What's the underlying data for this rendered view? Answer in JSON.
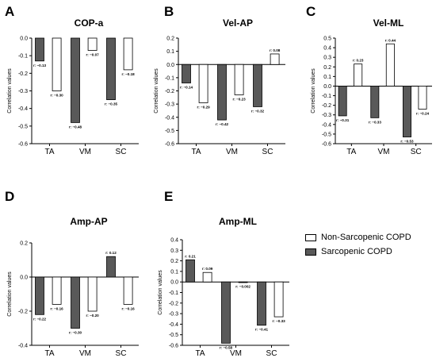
{
  "colors": {
    "non_sarcopenic": "#ffffff",
    "sarcopenic": "#595959",
    "axis": "#000000"
  },
  "legend": [
    {
      "label": "Non-Sarcopenic COPD",
      "color": "#ffffff"
    },
    {
      "label": "Sarcopenic COPD",
      "color": "#595959"
    }
  ],
  "chart_data": [
    {
      "panel": "A",
      "title": "COP-a",
      "type": "bar",
      "ylabel": "Correlation values",
      "categories": [
        "TA",
        "VM",
        "SC"
      ],
      "ylim": [
        -0.6,
        0.0
      ],
      "yticks": [
        0.0,
        -0.1,
        -0.2,
        -0.3,
        -0.4,
        -0.5,
        -0.6
      ],
      "ytick_labels": [
        "0.0",
        "-0.1",
        "-0.2",
        "-0.3",
        "-0.4",
        "-0.5",
        "-0.6"
      ],
      "series": [
        {
          "name": "Sarcopenic COPD",
          "values": [
            -0.13,
            -0.48,
            -0.35
          ],
          "labels": [
            "r: −0.13",
            "r: −0.48",
            "r: −0.35"
          ]
        },
        {
          "name": "Non-Sarcopenic COPD",
          "values": [
            -0.3,
            -0.07,
            -0.18
          ],
          "labels": [
            "r: −0.30",
            "r: −0.07",
            "r: −0.18"
          ]
        }
      ]
    },
    {
      "panel": "B",
      "title": "Vel-AP",
      "type": "bar",
      "ylabel": "Correlation values",
      "categories": [
        "TA",
        "VM",
        "SC"
      ],
      "ylim": [
        -0.6,
        0.2
      ],
      "yticks": [
        0.2,
        0.1,
        0.0,
        -0.1,
        -0.2,
        -0.3,
        -0.4,
        -0.5,
        -0.6
      ],
      "ytick_labels": [
        "0.2",
        "0.1",
        "0.0",
        "-0.1",
        "-0.2",
        "-0.3",
        "-0.4",
        "-0.5",
        "-0.6"
      ],
      "series": [
        {
          "name": "Sarcopenic COPD",
          "values": [
            -0.14,
            -0.42,
            -0.32
          ],
          "labels": [
            "r: −0.14",
            "r: −0.42",
            "r: −0.32"
          ]
        },
        {
          "name": "Non-Sarcopenic COPD",
          "values": [
            -0.29,
            -0.23,
            0.08
          ],
          "labels": [
            "r: −0.29",
            "r: −0.23",
            "r: 0.08"
          ]
        }
      ]
    },
    {
      "panel": "C",
      "title": "Vel-ML",
      "type": "bar",
      "ylabel": "Correlation values",
      "categories": [
        "TA",
        "VM",
        "SC"
      ],
      "ylim": [
        -0.6,
        0.5
      ],
      "yticks": [
        0.5,
        0.4,
        0.3,
        0.2,
        0.1,
        0.0,
        -0.1,
        -0.2,
        -0.3,
        -0.4,
        -0.5,
        -0.6
      ],
      "ytick_labels": [
        "0.5",
        "0.4",
        "0.3",
        "0.2",
        "0.1",
        "0.0",
        "-0.1",
        "-0.2",
        "-0.3",
        "-0.4",
        "-0.5",
        "-0.6"
      ],
      "series": [
        {
          "name": "Sarcopenic COPD",
          "values": [
            -0.31,
            -0.33,
            -0.53
          ],
          "labels": [
            "r: −0.31",
            "r: −0.33",
            "r: −0.53"
          ]
        },
        {
          "name": "Non-Sarcopenic COPD",
          "values": [
            0.23,
            0.44,
            -0.24
          ],
          "labels": [
            "r: 0.23",
            "r: 0.44",
            "r: −0.24"
          ]
        }
      ]
    },
    {
      "panel": "D",
      "title": "Amp-AP",
      "type": "bar",
      "ylabel": "Correlation values",
      "categories": [
        "TA",
        "VM",
        "SC"
      ],
      "ylim": [
        -0.4,
        0.2
      ],
      "yticks": [
        0.2,
        0.0,
        -0.2,
        -0.4
      ],
      "ytick_labels": [
        "0.2",
        "0.0",
        "-0.2",
        "-0.4"
      ],
      "series": [
        {
          "name": "Sarcopenic COPD",
          "values": [
            -0.22,
            -0.3,
            0.12
          ],
          "labels": [
            "r: −0.22",
            "r: −0.30",
            "r: 0.12"
          ]
        },
        {
          "name": "Non-Sarcopenic COPD",
          "values": [
            -0.16,
            -0.2,
            -0.16
          ],
          "labels": [
            "r: −0.16",
            "r: −0.20",
            "r: −0.16"
          ]
        }
      ]
    },
    {
      "panel": "E",
      "title": "Amp-ML",
      "type": "bar",
      "ylabel": "Correlation values",
      "categories": [
        "TA",
        "VM",
        "SC"
      ],
      "ylim": [
        -0.6,
        0.4
      ],
      "yticks": [
        0.4,
        0.3,
        0.2,
        0.1,
        0.0,
        -0.1,
        -0.2,
        -0.3,
        -0.4,
        -0.5,
        -0.6
      ],
      "ytick_labels": [
        "0.4",
        "0.3",
        "0.2",
        "0.1",
        "0.0",
        "-0.1",
        "-0.2",
        "-0.3",
        "-0.4",
        "-0.5",
        "-0.6"
      ],
      "series": [
        {
          "name": "Sarcopenic COPD",
          "values": [
            0.21,
            -0.58,
            -0.41
          ],
          "labels": [
            "r: 0.21",
            "r: −0.58",
            "r: −0.41"
          ]
        },
        {
          "name": "Non-Sarcopenic COPD",
          "values": [
            0.09,
            -0.002,
            -0.33
          ],
          "labels": [
            "r: 0.09",
            "r: −0.002",
            "r: −0.33"
          ]
        }
      ]
    }
  ]
}
